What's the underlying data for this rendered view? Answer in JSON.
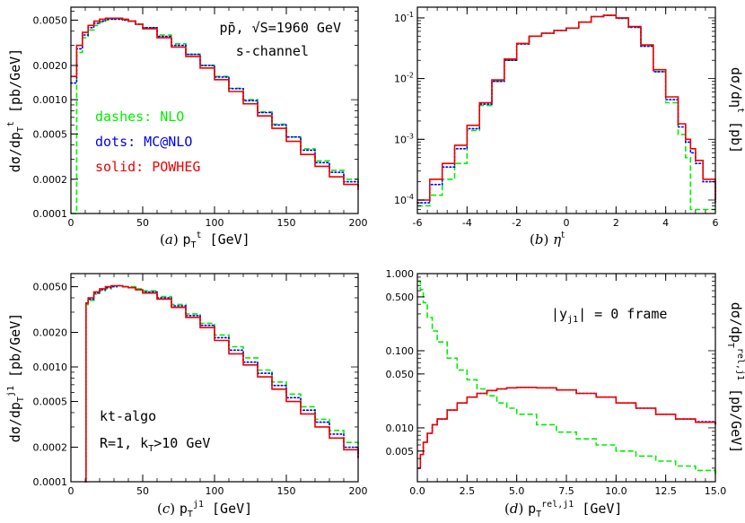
{
  "chart_data": [
    {
      "panel": "a",
      "type": "line",
      "xscale": "linear",
      "yscale": "log",
      "xlim": [
        0,
        200
      ],
      "ylim": [
        0.0001,
        0.0065
      ],
      "xticks": [
        0,
        50,
        100,
        150,
        200
      ],
      "xtick_labels": [
        "0",
        "50",
        "100",
        "150",
        "200"
      ],
      "yticks": [
        0.0001,
        0.0002,
        0.0005,
        0.001,
        0.002,
        0.005
      ],
      "ytick_labels": [
        "0.0001",
        "0.0002",
        "0.0005",
        "0.0010",
        "0.0020",
        "0.0050"
      ],
      "xlabel": "(a) pTt [GeV]",
      "ylabel": "dσ/dpTt [pb/GeV]",
      "annotations": [
        {
          "text": "pp̄,  √S=1960 GeV"
        },
        {
          "text": "s-channel"
        },
        {
          "text": "dashes: NLO",
          "color": "#00ee00"
        },
        {
          "text": "dots: MC@NLO",
          "color": "#0000ee"
        },
        {
          "text": "solid: POWHEG",
          "color": "#ee0000"
        }
      ],
      "x": [
        0,
        4,
        8,
        12,
        16,
        20,
        24,
        28,
        32,
        36,
        40,
        45,
        50,
        60,
        70,
        80,
        90,
        100,
        110,
        120,
        130,
        140,
        150,
        160,
        170,
        180,
        190,
        200
      ],
      "series": [
        {
          "label": "NLO",
          "style": "dashes",
          "color": "#00ee00",
          "values": [
            0.0001,
            0.0026,
            0.0035,
            0.0041,
            0.0045,
            0.0048,
            0.005,
            0.0051,
            0.0051,
            0.005,
            0.0049,
            0.0046,
            0.0043,
            0.0037,
            0.0031,
            0.0025,
            0.002,
            0.0016,
            0.00126,
            0.001,
            0.00078,
            0.00061,
            0.00047,
            0.00037,
            0.00029,
            0.00024,
            0.0002,
            0.00018
          ]
        },
        {
          "label": "MC@NLO",
          "style": "dots",
          "color": "#0000ee",
          "values": [
            0.0014,
            0.0028,
            0.0037,
            0.0043,
            0.0047,
            0.0049,
            0.0051,
            0.0051,
            0.0051,
            0.005,
            0.0049,
            0.0046,
            0.0043,
            0.0036,
            0.003,
            0.0025,
            0.002,
            0.00158,
            0.00125,
            0.00098,
            0.00077,
            0.0006,
            0.00047,
            0.00036,
            0.00028,
            0.00023,
            0.00019,
            0.00017
          ]
        },
        {
          "label": "POWHEG",
          "style": "solid",
          "color": "#ee0000",
          "values": [
            0.0016,
            0.003,
            0.0039,
            0.0045,
            0.0049,
            0.0051,
            0.0052,
            0.0052,
            0.0052,
            0.0051,
            0.0049,
            0.0046,
            0.0042,
            0.0035,
            0.0029,
            0.0024,
            0.0019,
            0.0015,
            0.00118,
            0.00092,
            0.00072,
            0.00056,
            0.00043,
            0.00033,
            0.00026,
            0.00021,
            0.00018,
            0.00016
          ]
        }
      ]
    },
    {
      "panel": "b",
      "type": "line",
      "xscale": "linear",
      "yscale": "log",
      "xlim": [
        -6,
        6
      ],
      "ylim": [
        6e-05,
        0.15
      ],
      "xticks": [
        -6,
        -4,
        -2,
        0,
        2,
        4,
        6
      ],
      "xtick_labels": [
        "-6",
        "-4",
        "-2",
        "0",
        "2",
        "4",
        "6"
      ],
      "yticks": [
        0.0001,
        0.001,
        0.01,
        0.1
      ],
      "ytick_labels": [
        "10-4",
        "10-3",
        "10-2",
        "10-1"
      ],
      "xlabel": "(b) ηt",
      "ylabel": "dσ/dηt [pb]",
      "x": [
        -6,
        -5.5,
        -5,
        -4.5,
        -4,
        -3.5,
        -3,
        -2.5,
        -2,
        -1.5,
        -1,
        -0.5,
        0,
        0.5,
        1,
        1.5,
        2,
        2.5,
        3,
        3.5,
        4,
        4.5,
        4.8,
        5,
        5.2,
        5.5,
        6
      ],
      "series": [
        {
          "label": "NLO",
          "style": "dashes",
          "color": "#00ee00",
          "values": [
            8e-05,
            0.00012,
            0.00022,
            0.0004,
            0.0014,
            0.0036,
            0.009,
            0.02,
            0.038,
            0.05,
            0.056,
            0.062,
            0.068,
            0.085,
            0.105,
            0.11,
            0.098,
            0.07,
            0.035,
            0.013,
            0.004,
            0.0012,
            0.0005,
            7e-05,
            7e-05,
            7e-05,
            7e-05
          ]
        },
        {
          "label": "MC@NLO",
          "style": "dots",
          "color": "#0000ee",
          "values": [
            9e-05,
            0.00018,
            0.00035,
            0.0007,
            0.0015,
            0.0038,
            0.009,
            0.02,
            0.037,
            0.05,
            0.056,
            0.062,
            0.068,
            0.085,
            0.105,
            0.11,
            0.098,
            0.07,
            0.034,
            0.013,
            0.0045,
            0.0016,
            0.0009,
            0.0006,
            0.0004,
            0.0002,
            9e-05
          ]
        },
        {
          "label": "POWHEG",
          "style": "solid",
          "color": "#ee0000",
          "values": [
            0.0001,
            0.00022,
            0.0004,
            0.0008,
            0.0017,
            0.004,
            0.0095,
            0.021,
            0.038,
            0.05,
            0.056,
            0.062,
            0.068,
            0.085,
            0.105,
            0.11,
            0.1,
            0.072,
            0.036,
            0.014,
            0.005,
            0.0018,
            0.001,
            0.0007,
            0.00045,
            0.00022,
            0.0001
          ]
        }
      ]
    },
    {
      "panel": "c",
      "type": "line",
      "xscale": "linear",
      "yscale": "log",
      "xlim": [
        0,
        200
      ],
      "ylim": [
        0.0001,
        0.0065
      ],
      "xticks": [
        0,
        50,
        100,
        150,
        200
      ],
      "xtick_labels": [
        "0",
        "50",
        "100",
        "150",
        "200"
      ],
      "yticks": [
        0.0001,
        0.0002,
        0.0005,
        0.001,
        0.002,
        0.005
      ],
      "ytick_labels": [
        "0.0001",
        "0.0002",
        "0.0005",
        "0.0010",
        "0.0020",
        "0.0050"
      ],
      "xlabel": "(c) pTj1 [GeV]",
      "ylabel": "dσ/dpTj1 [pb/GeV]",
      "annotations": [
        {
          "text": "kt-algo"
        },
        {
          "text": "R=1, kT>10 GeV"
        }
      ],
      "x": [
        10,
        10.5,
        12,
        16,
        20,
        24,
        28,
        32,
        36,
        40,
        45,
        50,
        60,
        70,
        80,
        90,
        100,
        110,
        120,
        130,
        140,
        150,
        160,
        170,
        180,
        190,
        200
      ],
      "series": [
        {
          "label": "NLO",
          "style": "dashes",
          "color": "#00ee00",
          "values": [
            0.0001,
            0.0035,
            0.0038,
            0.0043,
            0.0046,
            0.0048,
            0.005,
            0.0051,
            0.005,
            0.005,
            0.0048,
            0.0046,
            0.0041,
            0.0035,
            0.0029,
            0.0024,
            0.0019,
            0.0015,
            0.0012,
            0.00094,
            0.00074,
            0.00058,
            0.00045,
            0.00035,
            0.00028,
            0.00022,
            0.00018
          ]
        },
        {
          "label": "MC@NLO",
          "style": "dots",
          "color": "#0000ee",
          "values": [
            0.0001,
            0.0036,
            0.0039,
            0.0044,
            0.0047,
            0.0049,
            0.005,
            0.0051,
            0.005,
            0.0049,
            0.0047,
            0.0045,
            0.004,
            0.0034,
            0.0028,
            0.0023,
            0.0018,
            0.0014,
            0.0011,
            0.00088,
            0.00069,
            0.00054,
            0.00042,
            0.00033,
            0.00026,
            0.0002,
            0.00016
          ]
        },
        {
          "label": "POWHEG",
          "style": "solid",
          "color": "#ee0000",
          "values": [
            0.0001,
            0.0036,
            0.004,
            0.0045,
            0.0048,
            0.005,
            0.0051,
            0.0051,
            0.005,
            0.0049,
            0.0047,
            0.0044,
            0.0039,
            0.0033,
            0.0027,
            0.0022,
            0.0017,
            0.0013,
            0.00104,
            0.00082,
            0.00064,
            0.0005,
            0.00039,
            0.0003,
            0.00024,
            0.00019,
            0.00016
          ]
        }
      ]
    },
    {
      "panel": "d",
      "type": "line",
      "xscale": "linear",
      "yscale": "log",
      "xlim": [
        0,
        15
      ],
      "ylim": [
        0.002,
        1.0
      ],
      "xticks": [
        0,
        2.5,
        5,
        7.5,
        10,
        12.5,
        15
      ],
      "xtick_labels": [
        "0.0",
        "2.5",
        "5.0",
        "7.5",
        "10.0",
        "12.5",
        "15.0"
      ],
      "yticks": [
        0.005,
        0.01,
        0.05,
        0.1,
        0.5,
        1.0
      ],
      "ytick_labels": [
        "0.005",
        "0.010",
        "0.050",
        "0.100",
        "0.500",
        "1.000"
      ],
      "xlabel": "(d) pTrel,j1 [GeV]",
      "ylabel": "dσ/dpTrel,j1 [pb/GeV]",
      "annotations": [
        {
          "text": "|yj1| = 0 frame"
        }
      ],
      "x": [
        0.05,
        0.15,
        0.3,
        0.5,
        0.75,
        1,
        1.5,
        2,
        2.5,
        3,
        3.5,
        4,
        4.5,
        5,
        6,
        7,
        8,
        9,
        10,
        11,
        12,
        13,
        14,
        15
      ],
      "series": [
        {
          "label": "NLO",
          "style": "dashes",
          "color": "#00ee00",
          "values": [
            0.8,
            0.62,
            0.42,
            0.27,
            0.18,
            0.13,
            0.08,
            0.056,
            0.042,
            0.032,
            0.026,
            0.021,
            0.018,
            0.015,
            0.011,
            0.0088,
            0.0072,
            0.006,
            0.005,
            0.0043,
            0.0037,
            0.0032,
            0.0028,
            0.0025
          ]
        },
        {
          "label": "MC@NLO",
          "style": "dots",
          "color": "#0000ee",
          "values": [
            0.003,
            0.0045,
            0.0065,
            0.0085,
            0.011,
            0.013,
            0.017,
            0.021,
            0.025,
            0.028,
            0.0305,
            0.032,
            0.033,
            0.0335,
            0.033,
            0.031,
            0.028,
            0.025,
            0.021,
            0.018,
            0.015,
            0.013,
            0.012,
            0.011
          ]
        },
        {
          "label": "POWHEG",
          "style": "solid",
          "color": "#ee0000",
          "values": [
            0.003,
            0.0045,
            0.0065,
            0.0085,
            0.011,
            0.013,
            0.017,
            0.021,
            0.025,
            0.028,
            0.0305,
            0.032,
            0.033,
            0.0335,
            0.033,
            0.031,
            0.028,
            0.025,
            0.021,
            0.018,
            0.015,
            0.013,
            0.0118,
            0.011
          ]
        }
      ]
    }
  ]
}
